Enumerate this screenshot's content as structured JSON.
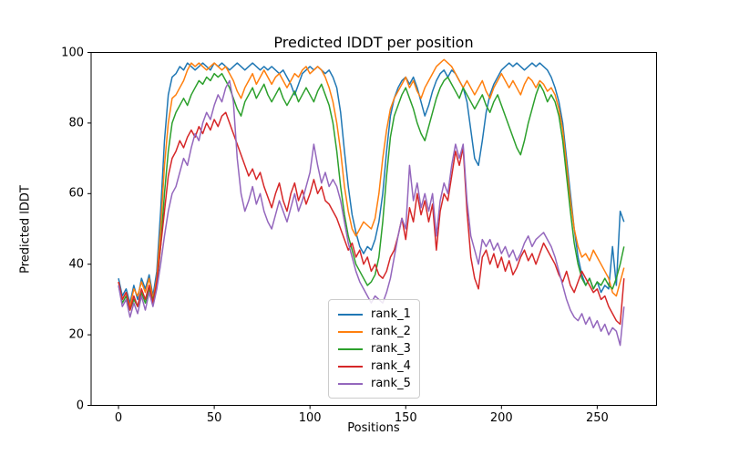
{
  "figure": {
    "title": "Predicted lDDT per position",
    "xlabel": "Positions",
    "ylabel": "Predicted lDDT",
    "background_color": "#ffffff"
  },
  "chart_data": {
    "type": "line",
    "title": "Predicted lDDT per position",
    "xlabel": "Positions",
    "ylabel": "Predicted lDDT",
    "xlim": [
      -14.3,
      281
    ],
    "ylim": [
      0,
      100
    ],
    "x_ticks": [
      0,
      50,
      100,
      150,
      200,
      250
    ],
    "y_ticks": [
      0,
      20,
      40,
      60,
      80,
      100
    ],
    "grid": false,
    "legend_position": "lower center inside axes",
    "x": [
      0,
      2,
      4,
      6,
      8,
      10,
      12,
      14,
      16,
      18,
      20,
      22,
      24,
      26,
      28,
      30,
      32,
      34,
      36,
      38,
      40,
      42,
      44,
      46,
      48,
      50,
      52,
      54,
      56,
      58,
      60,
      62,
      64,
      66,
      68,
      70,
      72,
      74,
      76,
      78,
      80,
      82,
      84,
      86,
      88,
      90,
      92,
      94,
      96,
      98,
      100,
      102,
      104,
      106,
      108,
      110,
      112,
      114,
      116,
      118,
      120,
      122,
      124,
      126,
      128,
      130,
      132,
      134,
      136,
      138,
      140,
      142,
      144,
      146,
      148,
      150,
      152,
      154,
      156,
      158,
      160,
      162,
      164,
      166,
      168,
      170,
      172,
      174,
      176,
      178,
      180,
      182,
      184,
      186,
      188,
      190,
      192,
      194,
      196,
      198,
      200,
      202,
      204,
      206,
      208,
      210,
      212,
      214,
      216,
      218,
      220,
      222,
      224,
      226,
      228,
      230,
      232,
      234,
      236,
      238,
      240,
      242,
      244,
      246,
      248,
      250,
      252,
      254,
      256,
      258,
      260,
      262,
      264
    ],
    "series": [
      {
        "name": "rank_1",
        "color": "#1f77b4",
        "values": [
          36,
          31,
          33,
          29,
          34,
          30,
          36,
          33,
          37,
          31,
          38,
          55,
          75,
          88,
          93,
          94,
          96,
          95,
          97,
          96,
          95,
          96,
          97,
          96,
          95,
          97,
          96,
          97,
          96,
          95,
          96,
          97,
          96,
          95,
          96,
          97,
          96,
          95,
          96,
          95,
          96,
          95,
          94,
          95,
          93,
          91,
          88,
          91,
          94,
          95,
          96,
          95,
          96,
          95,
          94,
          95,
          93,
          90,
          83,
          72,
          62,
          54,
          49,
          45,
          43,
          45,
          44,
          47,
          52,
          60,
          72,
          82,
          87,
          90,
          92,
          93,
          91,
          93,
          90,
          86,
          82,
          85,
          89,
          92,
          94,
          95,
          93,
          95,
          94,
          92,
          90,
          86,
          78,
          70,
          68,
          75,
          83,
          88,
          91,
          93,
          95,
          96,
          97,
          96,
          97,
          96,
          95,
          96,
          97,
          96,
          97,
          96,
          95,
          93,
          90,
          86,
          80,
          70,
          60,
          50,
          42,
          37,
          34,
          36,
          33,
          35,
          32,
          34,
          33,
          45,
          34,
          55,
          52
        ]
      },
      {
        "name": "rank_2",
        "color": "#ff7f0e",
        "values": [
          35,
          30,
          32,
          28,
          33,
          31,
          35,
          32,
          36,
          30,
          36,
          50,
          68,
          80,
          87,
          88,
          90,
          92,
          95,
          97,
          96,
          97,
          96,
          95,
          96,
          97,
          96,
          95,
          96,
          94,
          92,
          89,
          87,
          90,
          92,
          94,
          91,
          93,
          95,
          93,
          91,
          93,
          94,
          92,
          90,
          92,
          94,
          93,
          95,
          96,
          94,
          95,
          96,
          95,
          93,
          90,
          86,
          80,
          72,
          62,
          55,
          50,
          48,
          50,
          52,
          51,
          50,
          53,
          60,
          70,
          78,
          84,
          87,
          89,
          91,
          93,
          90,
          92,
          89,
          87,
          90,
          92,
          94,
          96,
          97,
          98,
          97,
          96,
          94,
          92,
          90,
          92,
          90,
          88,
          90,
          92,
          89,
          87,
          90,
          92,
          94,
          92,
          90,
          92,
          90,
          88,
          91,
          93,
          92,
          90,
          92,
          91,
          89,
          90,
          88,
          84,
          78,
          68,
          58,
          50,
          45,
          42,
          43,
          41,
          44,
          42,
          40,
          38,
          36,
          32,
          31,
          35,
          39
        ]
      },
      {
        "name": "rank_3",
        "color": "#2ca02c",
        "values": [
          34,
          29,
          31,
          27,
          30,
          28,
          32,
          29,
          33,
          30,
          34,
          45,
          60,
          72,
          80,
          83,
          85,
          87,
          85,
          88,
          90,
          92,
          91,
          93,
          92,
          94,
          93,
          94,
          92,
          90,
          87,
          84,
          82,
          86,
          88,
          90,
          87,
          89,
          91,
          88,
          86,
          88,
          90,
          87,
          85,
          87,
          89,
          86,
          88,
          90,
          88,
          86,
          89,
          91,
          88,
          85,
          80,
          72,
          62,
          54,
          48,
          44,
          40,
          38,
          36,
          34,
          35,
          37,
          42,
          52,
          65,
          76,
          82,
          85,
          88,
          90,
          87,
          84,
          80,
          77,
          75,
          79,
          83,
          87,
          90,
          92,
          93,
          91,
          89,
          87,
          90,
          88,
          86,
          84,
          86,
          88,
          85,
          83,
          86,
          88,
          85,
          82,
          79,
          76,
          73,
          71,
          75,
          80,
          84,
          88,
          91,
          89,
          86,
          88,
          86,
          82,
          75,
          65,
          55,
          46,
          40,
          36,
          34,
          36,
          33,
          35,
          34,
          36,
          34,
          33,
          36,
          40,
          45
        ]
      },
      {
        "name": "rank_4",
        "color": "#d62728",
        "values": [
          35,
          30,
          32,
          27,
          31,
          28,
          33,
          30,
          34,
          29,
          35,
          45,
          55,
          65,
          70,
          72,
          75,
          73,
          76,
          78,
          76,
          79,
          77,
          80,
          78,
          81,
          79,
          82,
          83,
          80,
          77,
          74,
          71,
          68,
          65,
          67,
          64,
          66,
          62,
          59,
          56,
          60,
          63,
          58,
          55,
          60,
          63,
          58,
          61,
          57,
          60,
          64,
          60,
          62,
          58,
          57,
          55,
          53,
          50,
          47,
          44,
          46,
          42,
          44,
          40,
          42,
          38,
          40,
          37,
          36,
          38,
          42,
          44,
          48,
          53,
          47,
          56,
          52,
          60,
          54,
          58,
          52,
          57,
          44,
          55,
          60,
          58,
          65,
          72,
          68,
          73,
          55,
          42,
          36,
          33,
          42,
          44,
          40,
          43,
          39,
          42,
          38,
          41,
          37,
          39,
          42,
          44,
          41,
          43,
          40,
          43,
          46,
          44,
          42,
          40,
          37,
          35,
          38,
          34,
          32,
          35,
          38,
          36,
          34,
          32,
          33,
          30,
          31,
          28,
          26,
          24,
          23,
          36
        ]
      },
      {
        "name": "rank_5",
        "color": "#9467bd",
        "values": [
          34,
          28,
          30,
          25,
          29,
          26,
          31,
          27,
          32,
          28,
          33,
          40,
          48,
          55,
          60,
          62,
          66,
          70,
          68,
          73,
          77,
          75,
          80,
          83,
          81,
          85,
          88,
          86,
          90,
          92,
          86,
          70,
          60,
          55,
          58,
          62,
          57,
          60,
          55,
          52,
          50,
          54,
          58,
          55,
          52,
          56,
          60,
          55,
          58,
          62,
          66,
          74,
          68,
          63,
          66,
          62,
          64,
          62,
          58,
          52,
          46,
          42,
          38,
          35,
          33,
          31,
          29,
          31,
          30,
          29,
          32,
          36,
          42,
          48,
          53,
          50,
          68,
          58,
          63,
          56,
          60,
          55,
          60,
          48,
          58,
          63,
          60,
          68,
          74,
          70,
          74,
          58,
          48,
          44,
          40,
          47,
          45,
          47,
          44,
          46,
          43,
          45,
          42,
          44,
          41,
          43,
          46,
          48,
          45,
          47,
          48,
          49,
          47,
          45,
          42,
          38,
          34,
          30,
          27,
          25,
          24,
          26,
          23,
          25,
          22,
          24,
          21,
          23,
          20,
          22,
          21,
          17,
          28
        ]
      }
    ]
  },
  "legend": {
    "items": [
      {
        "label": "rank_1"
      },
      {
        "label": "rank_2"
      },
      {
        "label": "rank_3"
      },
      {
        "label": "rank_4"
      },
      {
        "label": "rank_5"
      }
    ]
  }
}
